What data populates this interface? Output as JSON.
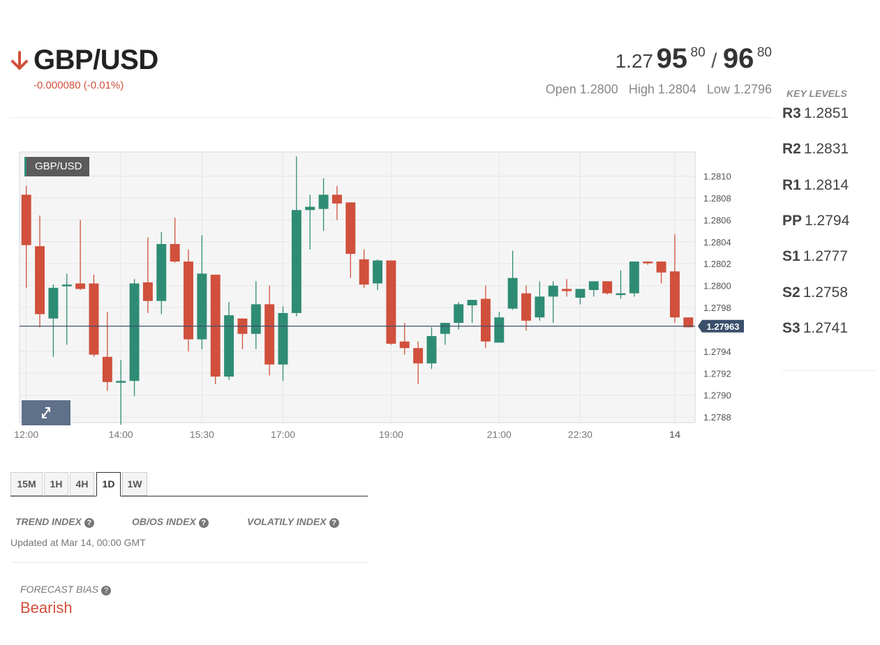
{
  "header": {
    "symbol": "GBP/USD",
    "change": "-0.000080 (-0.01%)",
    "bid_prefix": "1.27",
    "bid_big": "95",
    "bid_sup": "80",
    "separator": "/",
    "ask_big": "96",
    "ask_sup": "80",
    "open": "Open 1.2800",
    "high": "High 1.2804",
    "low": "Low 1.2796"
  },
  "key_levels": {
    "title": "KEY LEVELS",
    "items": [
      {
        "label": "R3",
        "value": "1.2851"
      },
      {
        "label": "R2",
        "value": "1.2831"
      },
      {
        "label": "R1",
        "value": "1.2814"
      },
      {
        "label": "PP",
        "value": "1.2794"
      },
      {
        "label": "S1",
        "value": "1.2777"
      },
      {
        "label": "S2",
        "value": "1.2758"
      },
      {
        "label": "S3",
        "value": "1.2741"
      }
    ]
  },
  "chart_tag": "GBP/USD",
  "timeframes": [
    "15M",
    "1H",
    "4H",
    "1D",
    "1W"
  ],
  "active_timeframe": "1D",
  "indices": {
    "trend": "TREND INDEX",
    "obos": "OB/OS INDEX",
    "volatility": "VOLATILY INDEX"
  },
  "updated": "Updated at Mar 14, 00:00 GMT",
  "forecast": {
    "label": "FORECAST BIAS",
    "value": "Bearish"
  },
  "colors": {
    "bull": "#2f8c74",
    "bear": "#d0503c",
    "last_price_line": "#3a4f6b",
    "accent_red": "#d0503c"
  },
  "chart_data": {
    "type": "candlestick",
    "ylim": [
      1.27875,
      1.28122
    ],
    "y_ticks": [
      "1.2810",
      "1.2808",
      "1.2806",
      "1.2804",
      "1.2802",
      "1.2800",
      "1.2798",
      "1.2794",
      "1.2792",
      "1.2790",
      "1.2788"
    ],
    "x_tick_labels": [
      "12:00",
      "14:00",
      "15:30",
      "17:00",
      "19:00",
      "21:00",
      "22:30",
      "14"
    ],
    "x_tick_candle_index": [
      0,
      7,
      13,
      19,
      27,
      35,
      41,
      48
    ],
    "last_price": 1.27963,
    "last_price_label": "1.27963",
    "candles": [
      {
        "o": 1.28083,
        "h": 1.28091,
        "l": 1.27998,
        "c": 1.28037
      },
      {
        "o": 1.28036,
        "h": 1.28064,
        "l": 1.27962,
        "c": 1.27974
      },
      {
        "o": 1.2797,
        "h": 1.28001,
        "l": 1.27935,
        "c": 1.27998
      },
      {
        "o": 1.28,
        "h": 1.28011,
        "l": 1.27946,
        "c": 1.28001
      },
      {
        "o": 1.28002,
        "h": 1.2806,
        "l": 1.27996,
        "c": 1.27997
      },
      {
        "o": 1.28002,
        "h": 1.2801,
        "l": 1.27935,
        "c": 1.27937
      },
      {
        "o": 1.27935,
        "h": 1.27976,
        "l": 1.27904,
        "c": 1.27912
      },
      {
        "o": 1.27912,
        "h": 1.27932,
        "l": 1.27873,
        "c": 1.27913
      },
      {
        "o": 1.27913,
        "h": 1.28006,
        "l": 1.27899,
        "c": 1.28002
      },
      {
        "o": 1.28003,
        "h": 1.28044,
        "l": 1.27975,
        "c": 1.27986
      },
      {
        "o": 1.27986,
        "h": 1.28049,
        "l": 1.27974,
        "c": 1.28038
      },
      {
        "o": 1.28038,
        "h": 1.28062,
        "l": 1.28021,
        "c": 1.28022
      },
      {
        "o": 1.28022,
        "h": 1.28033,
        "l": 1.2794,
        "c": 1.27951
      },
      {
        "o": 1.27951,
        "h": 1.28046,
        "l": 1.27942,
        "c": 1.28011
      },
      {
        "o": 1.2801,
        "h": 1.2801,
        "l": 1.2791,
        "c": 1.27917
      },
      {
        "o": 1.27917,
        "h": 1.27985,
        "l": 1.27914,
        "c": 1.27973
      },
      {
        "o": 1.2797,
        "h": 1.2797,
        "l": 1.27942,
        "c": 1.27956
      },
      {
        "o": 1.27956,
        "h": 1.28004,
        "l": 1.27942,
        "c": 1.27983
      },
      {
        "o": 1.27983,
        "h": 1.28,
        "l": 1.27918,
        "c": 1.27928
      },
      {
        "o": 1.27928,
        "h": 1.27981,
        "l": 1.27913,
        "c": 1.27975
      },
      {
        "o": 1.27975,
        "h": 1.28118,
        "l": 1.27972,
        "c": 1.28069
      },
      {
        "o": 1.28069,
        "h": 1.28083,
        "l": 1.28033,
        "c": 1.28072
      },
      {
        "o": 1.2807,
        "h": 1.28098,
        "l": 1.2805,
        "c": 1.28083
      },
      {
        "o": 1.28083,
        "h": 1.28091,
        "l": 1.2806,
        "c": 1.28075
      },
      {
        "o": 1.28076,
        "h": 1.28076,
        "l": 1.28007,
        "c": 1.28029
      },
      {
        "o": 1.28024,
        "h": 1.28033,
        "l": 1.27998,
        "c": 1.28001
      },
      {
        "o": 1.28002,
        "h": 1.28024,
        "l": 1.27996,
        "c": 1.28023
      },
      {
        "o": 1.28023,
        "h": 1.28023,
        "l": 1.27946,
        "c": 1.27947
      },
      {
        "o": 1.27949,
        "h": 1.27966,
        "l": 1.27937,
        "c": 1.27943
      },
      {
        "o": 1.27943,
        "h": 1.27949,
        "l": 1.2791,
        "c": 1.27929
      },
      {
        "o": 1.27929,
        "h": 1.27962,
        "l": 1.27924,
        "c": 1.27954
      },
      {
        "o": 1.27956,
        "h": 1.27966,
        "l": 1.27946,
        "c": 1.27966
      },
      {
        "o": 1.27966,
        "h": 1.27985,
        "l": 1.2796,
        "c": 1.27983
      },
      {
        "o": 1.27982,
        "h": 1.27987,
        "l": 1.27966,
        "c": 1.27987
      },
      {
        "o": 1.27988,
        "h": 1.28,
        "l": 1.27943,
        "c": 1.27949
      },
      {
        "o": 1.27948,
        "h": 1.27976,
        "l": 1.27948,
        "c": 1.27971
      },
      {
        "o": 1.27979,
        "h": 1.28032,
        "l": 1.27978,
        "c": 1.28007
      },
      {
        "o": 1.27993,
        "h": 1.28,
        "l": 1.27959,
        "c": 1.27968
      },
      {
        "o": 1.27971,
        "h": 1.28004,
        "l": 1.27968,
        "c": 1.2799
      },
      {
        "o": 1.2799,
        "h": 1.28004,
        "l": 1.27966,
        "c": 1.28
      },
      {
        "o": 1.27997,
        "h": 1.28006,
        "l": 1.2799,
        "c": 1.27995
      },
      {
        "o": 1.27989,
        "h": 1.27997,
        "l": 1.27983,
        "c": 1.27997
      },
      {
        "o": 1.27996,
        "h": 1.28004,
        "l": 1.2799,
        "c": 1.28004
      },
      {
        "o": 1.28004,
        "h": 1.28004,
        "l": 1.27992,
        "c": 1.27993
      },
      {
        "o": 1.27993,
        "h": 1.28014,
        "l": 1.27988,
        "c": 1.27993
      },
      {
        "o": 1.27993,
        "h": 1.28022,
        "l": 1.2799,
        "c": 1.28022
      },
      {
        "o": 1.28022,
        "h": 1.28022,
        "l": 1.28019,
        "c": 1.28021
      },
      {
        "o": 1.28022,
        "h": 1.28022,
        "l": 1.28002,
        "c": 1.28012
      },
      {
        "o": 1.28013,
        "h": 1.28047,
        "l": 1.27966,
        "c": 1.27971
      },
      {
        "o": 1.27971,
        "h": 1.27971,
        "l": 1.27962,
        "c": 1.27962
      }
    ]
  }
}
